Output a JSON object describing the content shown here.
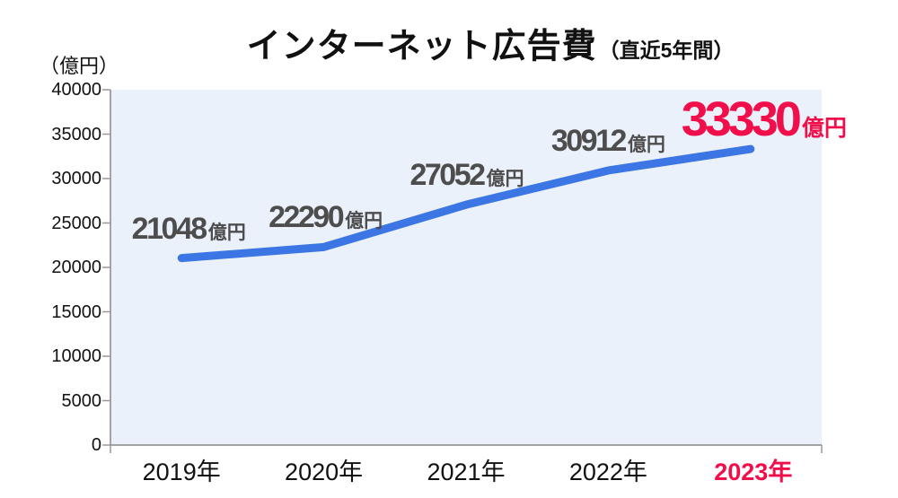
{
  "title": {
    "main": "インターネット広告費",
    "sub": "（直近5年間）"
  },
  "y_unit_label": "（億円）",
  "chart_data": {
    "type": "line",
    "categories": [
      "2019年",
      "2020年",
      "2021年",
      "2022年",
      "2023年"
    ],
    "values": [
      21048,
      22290,
      27052,
      30912,
      33330
    ],
    "value_suffix": "億円",
    "title": "インターネット広告費（直近5年間）",
    "xlabel": "",
    "ylabel": "（億円）",
    "ylim": [
      0,
      40000
    ],
    "ytick_step": 5000,
    "grid": false,
    "legend": "none",
    "highlight_index": 4,
    "colors": {
      "line": "#3B76E4",
      "plot_background": "#EBF1FA",
      "data_label": "#4D4D4D",
      "highlight": "#F00F4A",
      "axis": "#888888",
      "tick": "#999999",
      "text": "#111111"
    }
  }
}
